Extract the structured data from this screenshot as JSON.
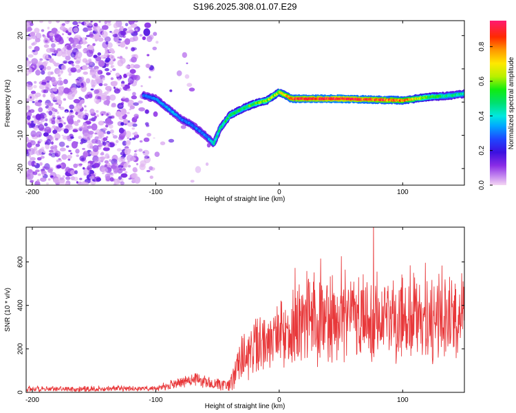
{
  "title": "S196.2025.308.01.07.E29",
  "chart_data": [
    {
      "type": "heatmap",
      "panel": "spectrogram",
      "title": "S196.2025.308.01.07.E29",
      "xlabel": "Height of straight line (km)",
      "ylabel": "Frequency (Hz)",
      "xlim": [
        -205,
        150
      ],
      "ylim": [
        -25,
        24.5
      ],
      "xticks": [
        -200,
        -100,
        0,
        100
      ],
      "yticks": [
        -20,
        -10,
        0,
        10,
        20
      ],
      "colorbar": {
        "label": "Normalized spectral amplitude",
        "range": [
          0,
          0.95
        ],
        "ticks": [
          0.0,
          0.2,
          0.4,
          0.6,
          0.8
        ]
      },
      "ridge": {
        "x": [
          -110,
          -100,
          -90,
          -80,
          -70,
          -60,
          -53,
          -48,
          -40,
          -30,
          -20,
          -10,
          0,
          10,
          50,
          100,
          120,
          140,
          150
        ],
        "y": [
          2,
          1,
          -2,
          -5,
          -7,
          -10,
          -12.5,
          -8,
          -4,
          -2,
          -0.5,
          0.5,
          3,
          1,
          1,
          0.5,
          1.5,
          2,
          2.5
        ],
        "amplitude": [
          0.3,
          0.3,
          0.35,
          0.3,
          0.3,
          0.3,
          0.4,
          0.45,
          0.5,
          0.5,
          0.55,
          0.6,
          0.65,
          0.85,
          0.9,
          0.8,
          0.55,
          0.45,
          0.45
        ]
      },
      "noise_region_x": [
        -205,
        -100
      ],
      "noise_amplitude_range": [
        0.02,
        0.12
      ]
    },
    {
      "type": "line",
      "panel": "snr",
      "xlabel": "Height of straight line (km)",
      "ylabel": "SNR (10 * v/v)",
      "xlim": [
        -205,
        150
      ],
      "ylim": [
        0,
        760
      ],
      "xticks": [
        -200,
        -100,
        0,
        100
      ],
      "yticks": [
        0,
        200,
        400,
        600
      ],
      "series": [
        {
          "name": "SNR",
          "color": "#e8383a",
          "profile_x": [
            -205,
            -100,
            -90,
            -80,
            -70,
            -60,
            -50,
            -40,
            -35,
            -30,
            -20,
            -10,
            0,
            10,
            20,
            40,
            60,
            80,
            100,
            120,
            150
          ],
          "baseline": [
            15,
            18,
            30,
            45,
            60,
            50,
            35,
            30,
            120,
            160,
            200,
            230,
            260,
            280,
            320,
            340,
            350,
            340,
            340,
            360,
            350
          ],
          "jitter": [
            12,
            12,
            20,
            25,
            30,
            30,
            25,
            25,
            90,
            110,
            120,
            120,
            130,
            140,
            180,
            200,
            180,
            180,
            180,
            200,
            180
          ]
        }
      ]
    }
  ]
}
